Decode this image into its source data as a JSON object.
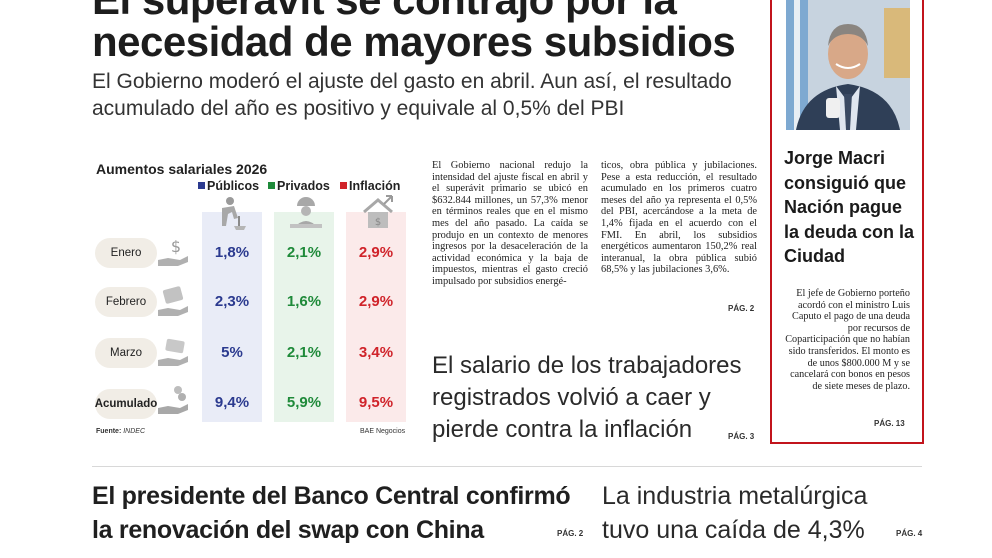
{
  "headline": {
    "line1": "El superávit se contrajo por la",
    "line2": "necesidad de mayores subsidios"
  },
  "deck": {
    "line1": "El Gobierno moderó el ajuste del gasto en abril. Aun así, el resultado",
    "line2": "acumulado del año es positivo y equivale al 0,5% del PBI"
  },
  "infographic": {
    "title": "Aumentos salariales 2026",
    "legend": [
      {
        "label": "Públicos",
        "color": "#2b3a8f"
      },
      {
        "label": "Privados",
        "color": "#1f8a3a"
      },
      {
        "label": "Inflación",
        "color": "#d0232a"
      }
    ],
    "rows": [
      {
        "label": "Enero",
        "publicos": "1,8%",
        "privados": "2,1%",
        "inflacion": "2,9%"
      },
      {
        "label": "Febrero",
        "publicos": "2,3%",
        "privados": "1,6%",
        "inflacion": "2,9%"
      },
      {
        "label": "Marzo",
        "publicos": "5%",
        "privados": "2,1%",
        "inflacion": "3,4%"
      },
      {
        "label": "Acumulado",
        "publicos": "9,4%",
        "privados": "5,9%",
        "inflacion": "9,5%"
      }
    ],
    "source_label": "Fuente:",
    "source": "INDEC",
    "credit": "BAE Negocios",
    "icons": [
      "worker-icon",
      "office-worker-icon",
      "house-price-icon",
      "money-hand-icon"
    ]
  },
  "article": {
    "col1": "El Gobierno nacional redujo la intensidad del ajuste fiscal en abril y el superávit primario se ubicó en $632.844 millones, un 57,3% menor en términos reales que en el mismo mes del año pasado. La caída se produjo en un contexto de menores ingresos por la desaceleración de la actividad económica y la baja de impuestos, mientras el gasto creció impulsado por subsidios energé-",
    "col2": "ticos, obra pública y jubilaciones. Pese a esta reducción, el resultado acumulado en los primeros cuatro meses del año ya representa el 0,5% del PBI, acercándose a la meta de 1,4% fijada en el acuerdo con el FMI. En abril, los subsidios energéticos aumentaron 150,2% real interanual, la obra pública subió 68,5% y las jubilaciones 3,6%.",
    "page": "PÁG. 2"
  },
  "salary_story": {
    "headline": "El salario de los trabajadores registrados volvió a caer y pierde contra la inflación",
    "page": "PÁG. 3"
  },
  "sidebar": {
    "headline": "Jorge Macri consiguió que Nación pague la deuda con la Ciudad",
    "body": "El jefe de Gobierno porteño acordó con el ministro Luis Caputo el pago de una deuda por recursos de Coparticipación que no habían sido transferidos. El monto es de unos $800.000 M y se cancelará con bonos en pesos de siete meses de plazo.",
    "page": "PÁG. 13"
  },
  "bottom": {
    "bcra_line1": "El presidente del Banco Central confirmó",
    "bcra_line2": "la renovación del swap con China",
    "bcra_page": "PÁG. 2",
    "metal_line1": "La industria metalúrgica",
    "metal_line2": "tuvo una caída de 4,3%",
    "metal_page": "PÁG. 4"
  }
}
